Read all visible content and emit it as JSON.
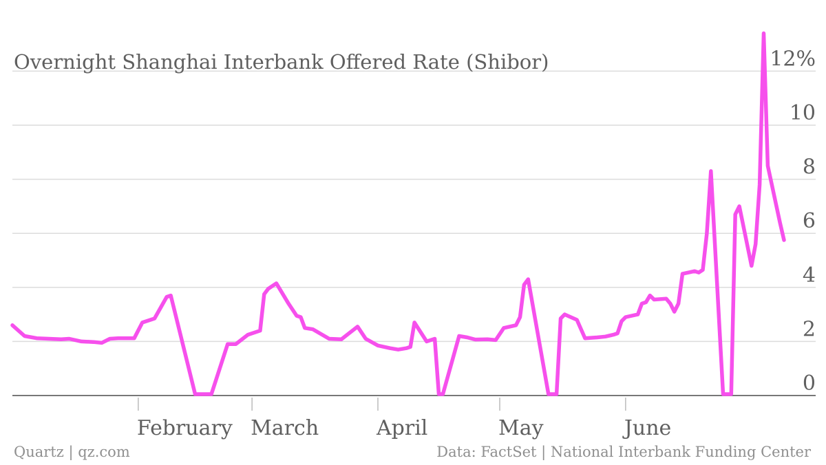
{
  "chart_data": {
    "type": "line",
    "title": "Overnight Shanghai Interbank Offered Rate (Shibor)",
    "x_unit": "day_of_year_2013",
    "x_min": 1,
    "x_max": 180,
    "ylim": [
      0,
      13.5
    ],
    "y_ticks": [
      {
        "value": 0,
        "label": "0"
      },
      {
        "value": 2,
        "label": "2"
      },
      {
        "value": 4,
        "label": "4"
      },
      {
        "value": 6,
        "label": "6"
      },
      {
        "value": 8,
        "label": "8"
      },
      {
        "value": 10,
        "label": "10"
      },
      {
        "value": 12,
        "label": "12%"
      }
    ],
    "x_ticks": [
      {
        "value": 32,
        "label": "February"
      },
      {
        "value": 60,
        "label": "March"
      },
      {
        "value": 91,
        "label": "April"
      },
      {
        "value": 121,
        "label": "May"
      },
      {
        "value": 152,
        "label": "June"
      }
    ],
    "grid": true,
    "series": [
      {
        "color": "#f650ec",
        "points": [
          [
            1,
            2.6
          ],
          [
            4,
            2.2
          ],
          [
            7,
            2.12
          ],
          [
            10,
            2.1
          ],
          [
            13,
            2.08
          ],
          [
            15,
            2.1
          ],
          [
            18,
            2.0
          ],
          [
            21,
            1.98
          ],
          [
            23,
            1.95
          ],
          [
            25,
            2.1
          ],
          [
            27,
            2.12
          ],
          [
            31,
            2.12
          ],
          [
            33,
            2.7
          ],
          [
            36,
            2.85
          ],
          [
            39,
            3.65
          ],
          [
            40,
            3.7
          ],
          [
            46,
            0.05
          ],
          [
            50,
            0.05
          ],
          [
            54,
            1.9
          ],
          [
            56,
            1.9
          ],
          [
            59,
            2.25
          ],
          [
            62,
            2.4
          ],
          [
            63,
            3.75
          ],
          [
            64,
            3.95
          ],
          [
            66,
            4.15
          ],
          [
            69,
            3.4
          ],
          [
            71,
            2.95
          ],
          [
            72,
            2.9
          ],
          [
            73,
            2.5
          ],
          [
            75,
            2.45
          ],
          [
            79,
            2.1
          ],
          [
            82,
            2.08
          ],
          [
            86,
            2.55
          ],
          [
            88,
            2.1
          ],
          [
            91,
            1.85
          ],
          [
            94,
            1.75
          ],
          [
            96,
            1.7
          ],
          [
            98,
            1.75
          ],
          [
            99,
            1.8
          ],
          [
            100,
            2.7
          ],
          [
            103,
            2.0
          ],
          [
            105,
            2.1
          ],
          [
            106,
            0.05
          ],
          [
            107,
            0.05
          ],
          [
            111,
            2.2
          ],
          [
            113,
            2.15
          ],
          [
            115,
            2.07
          ],
          [
            118,
            2.08
          ],
          [
            120,
            2.05
          ],
          [
            122,
            2.5
          ],
          [
            125,
            2.6
          ],
          [
            126,
            2.9
          ],
          [
            127,
            4.1
          ],
          [
            128,
            4.3
          ],
          [
            133,
            0.05
          ],
          [
            135,
            0.05
          ],
          [
            136,
            2.85
          ],
          [
            137,
            3.0
          ],
          [
            140,
            2.8
          ],
          [
            142,
            2.12
          ],
          [
            145,
            2.15
          ],
          [
            147,
            2.18
          ],
          [
            149,
            2.25
          ],
          [
            150,
            2.3
          ],
          [
            151,
            2.75
          ],
          [
            152,
            2.9
          ],
          [
            155,
            3.0
          ],
          [
            156,
            3.4
          ],
          [
            157,
            3.45
          ],
          [
            158,
            3.7
          ],
          [
            159,
            3.55
          ],
          [
            162,
            3.58
          ],
          [
            163,
            3.4
          ],
          [
            164,
            3.1
          ],
          [
            165,
            3.4
          ],
          [
            166,
            4.5
          ],
          [
            169,
            4.6
          ],
          [
            170,
            4.55
          ],
          [
            171,
            4.65
          ],
          [
            172,
            6.0
          ],
          [
            173,
            8.3
          ],
          [
            176,
            0.05
          ],
          [
            178,
            0.05
          ],
          [
            179,
            6.7
          ],
          [
            180,
            7.0
          ],
          [
            183,
            4.8
          ],
          [
            184,
            5.6
          ],
          [
            185,
            7.8
          ],
          [
            186,
            13.4
          ],
          [
            187,
            8.5
          ],
          [
            190,
            6.4
          ],
          [
            191,
            5.75
          ]
        ]
      }
    ]
  },
  "footer": {
    "left": "Quartz | qz.com",
    "right": "Data: FactSet | National Interbank Funding Center"
  }
}
